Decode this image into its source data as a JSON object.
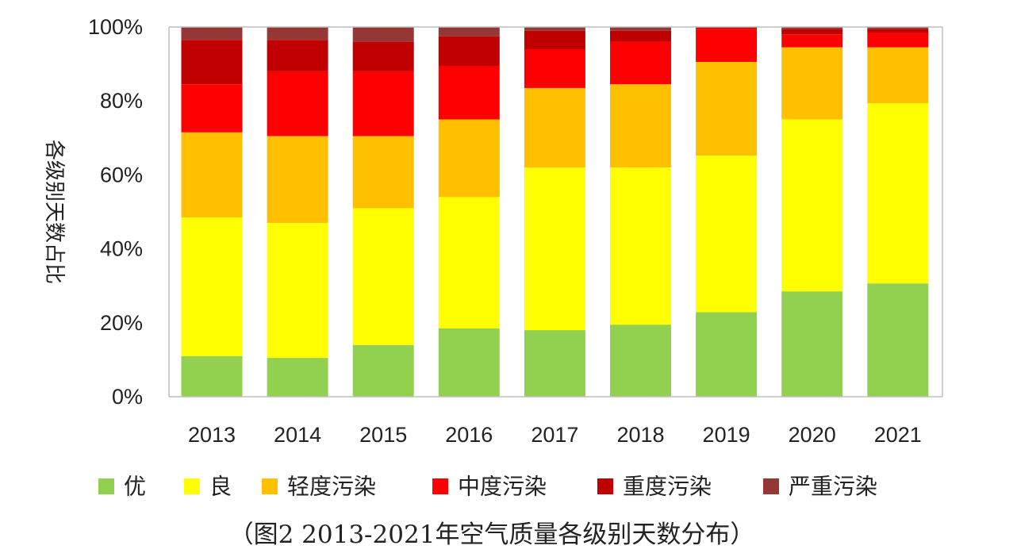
{
  "chart_data": {
    "type": "bar",
    "stacked": true,
    "normalized": true,
    "categories": [
      "2013",
      "2014",
      "2015",
      "2016",
      "2017",
      "2018",
      "2019",
      "2020",
      "2021"
    ],
    "series": [
      {
        "name": "优",
        "color": "#92d050",
        "values": [
          11,
          10.5,
          14,
          18.5,
          18,
          19.5,
          23,
          28.5,
          30.5
        ]
      },
      {
        "name": "良",
        "color": "#ffff00",
        "values": [
          37.5,
          36.5,
          37,
          35.5,
          44,
          42.5,
          42.5,
          46.5,
          48.5
        ]
      },
      {
        "name": "轻度污染",
        "color": "#ffc000",
        "values": [
          23,
          23.5,
          19.5,
          21,
          21.5,
          22.5,
          25.5,
          19.5,
          15
        ]
      },
      {
        "name": "中度污染",
        "color": "#ff0000",
        "values": [
          13,
          17.5,
          17.5,
          14.5,
          10.5,
          11.5,
          9,
          3.5,
          4
        ]
      },
      {
        "name": "重度污染",
        "color": "#c00000",
        "values": [
          12,
          8.5,
          8,
          8,
          5,
          3,
          0.5,
          1.5,
          1
        ]
      },
      {
        "name": "严重污染",
        "color": "#953735",
        "values": [
          3.5,
          3.5,
          4,
          2.5,
          1,
          1,
          0,
          0.5,
          0.5
        ]
      }
    ],
    "ylabel": "各级别天数占比",
    "yticks": [
      "0%",
      "20%",
      "40%",
      "60%",
      "80%",
      "100%"
    ],
    "ylim": [
      0,
      100
    ],
    "legend_position": "bottom",
    "grid": false
  },
  "caption": "（图2 2013-2021年空气质量各级别天数分布）"
}
